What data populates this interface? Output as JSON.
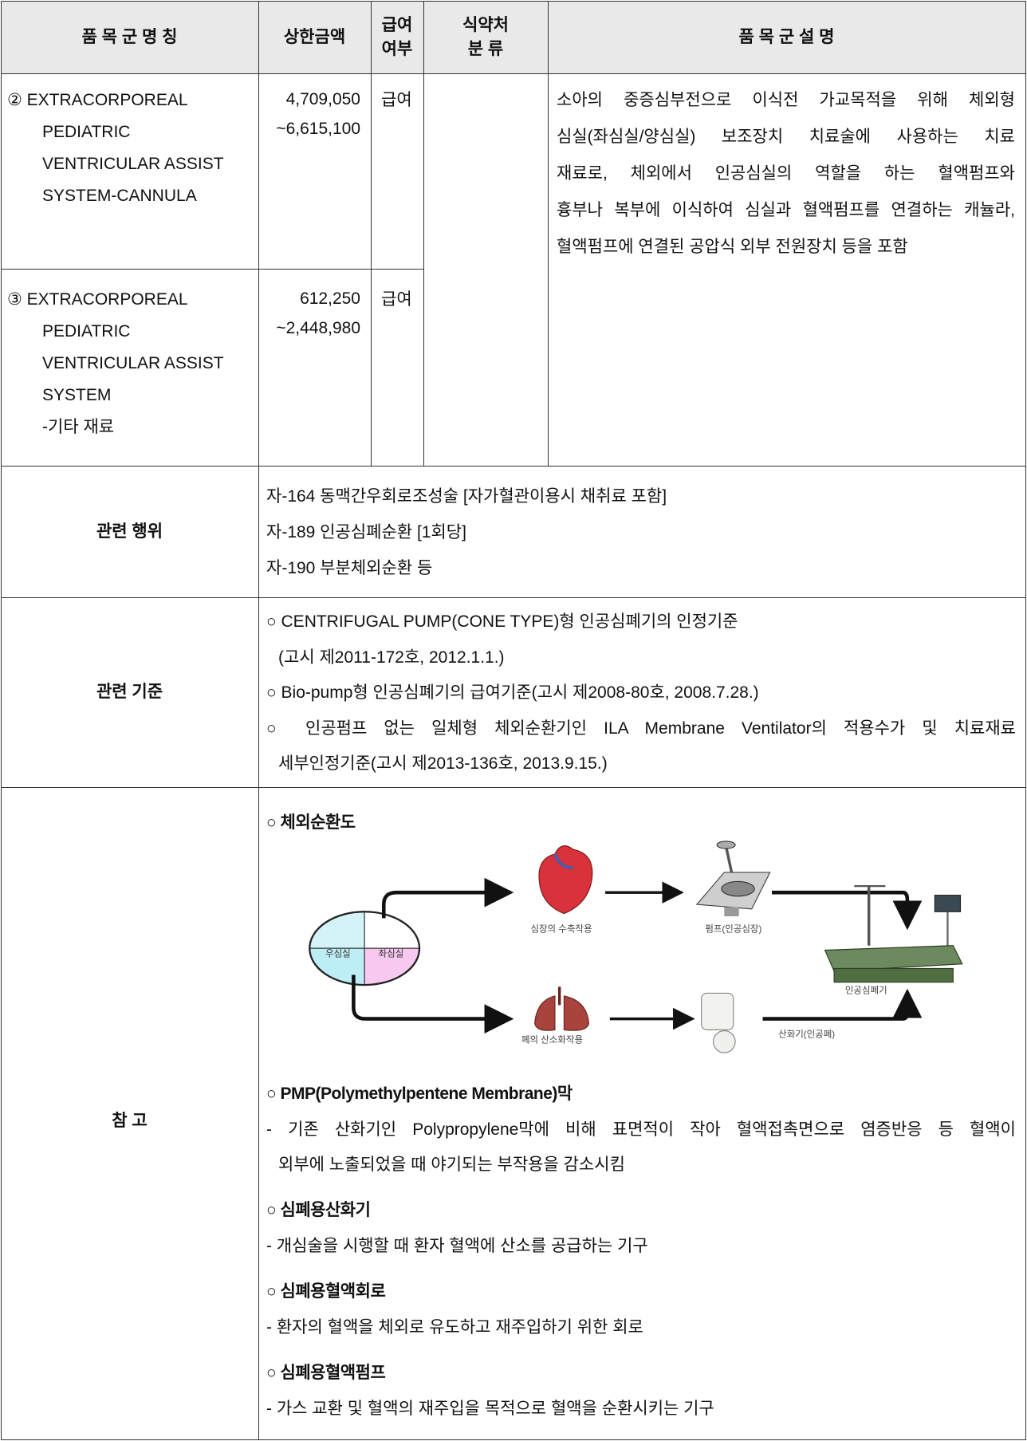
{
  "header": {
    "name": "품 목 군  명 칭",
    "price": "상한금액",
    "coverage": [
      "급여",
      "여부"
    ],
    "mfds": [
      "식약처",
      "분  류"
    ],
    "desc": "품  목  군      설  명"
  },
  "items": [
    {
      "name": [
        "② EXTRACORPOREAL",
        "PEDIATRIC",
        "VENTRICULAR ASSIST",
        "SYSTEM-CANNULA"
      ],
      "price": [
        "4,709,050",
        "~6,615,100"
      ],
      "coverage": "급여"
    },
    {
      "name": [
        "③ EXTRACORPOREAL",
        "PEDIATRIC",
        "VENTRICULAR ASSIST",
        "SYSTEM",
        "-기타 재료"
      ],
      "price": [
        "612,250",
        "~2,448,980"
      ],
      "coverage": "급여"
    }
  ],
  "description": [
    "소아의 중증심부전으로 이식전 가교목적을 위해 체외형",
    "심실(좌심실/양심실) 보조장치 치료술에 사용하는 치료",
    "재료로, 체외에서 인공심실의 역할을 하는 혈액펌프와",
    "흉부나 복부에 이식하여 심실과 혈액펌프를 연결하는 캐뉼라,",
    "혈액펌프에 연결된 공압식 외부 전원장치 등을 포함"
  ],
  "related_acts": {
    "label": "관련 행위",
    "lines": [
      "자-164 동맥간우회로조성술 [자가혈관이용시 채취료 포함]",
      "자-189 인공심폐순환 [1회당]",
      "자-190 부분체외순환 등"
    ]
  },
  "related_criteria": {
    "label": "관련 기준",
    "items": [
      [
        "○ CENTRIFUGAL PUMP(CONE TYPE)형 인공심폐기의 인정기준",
        "(고시 제2011-172호, 2012.1.1.)"
      ],
      [
        "○ Bio-pump형 인공심폐기의 급여기준(고시 제2008-80호, 2008.7.28.)"
      ],
      [
        "○ 인공펌프 없는 일체형 체외순환기인 ILA Membrane Ventilator의 적용수가 및 치료재료",
        "세부인정기준(고시 제2013-136호, 2013.9.15.)"
      ]
    ]
  },
  "reference": {
    "label": "참  고",
    "diagram_title": "○ 체외순환도",
    "diagram": {
      "right_ventricle": "우심실",
      "left_ventricle": "좌심실",
      "heart": "심장의 수축작용",
      "pump": "펌프(인공심장)",
      "machine": "인공심폐기",
      "lung": "폐의 산소화작용",
      "oxygenator": "산화기(인공폐)"
    },
    "sections": [
      {
        "title": "○ PMP(Polymethylpentene Membrane)막",
        "lines": [
          "- 기존 산화기인 Polypropylene막에 비해 표면적이 작아 혈액접촉면으로 염증반응 등 혈액이",
          "외부에 노출되었을 때 야기되는 부작용을 감소시킴"
        ]
      },
      {
        "title": "○ 심폐용산화기",
        "lines": [
          "- 개심술을 시행할 때 환자 혈액에 산소를 공급하는 기구"
        ]
      },
      {
        "title": "○ 심폐용혈액회로",
        "lines": [
          "- 환자의 혈액을 체외로 유도하고 재주입하기 위한 회로"
        ]
      },
      {
        "title": "○ 심폐용혈액펌프",
        "lines": [
          "- 가스 교환 및 혈액의 재주입을 목적으로 혈액을 순환시키는 기구"
        ]
      }
    ]
  }
}
